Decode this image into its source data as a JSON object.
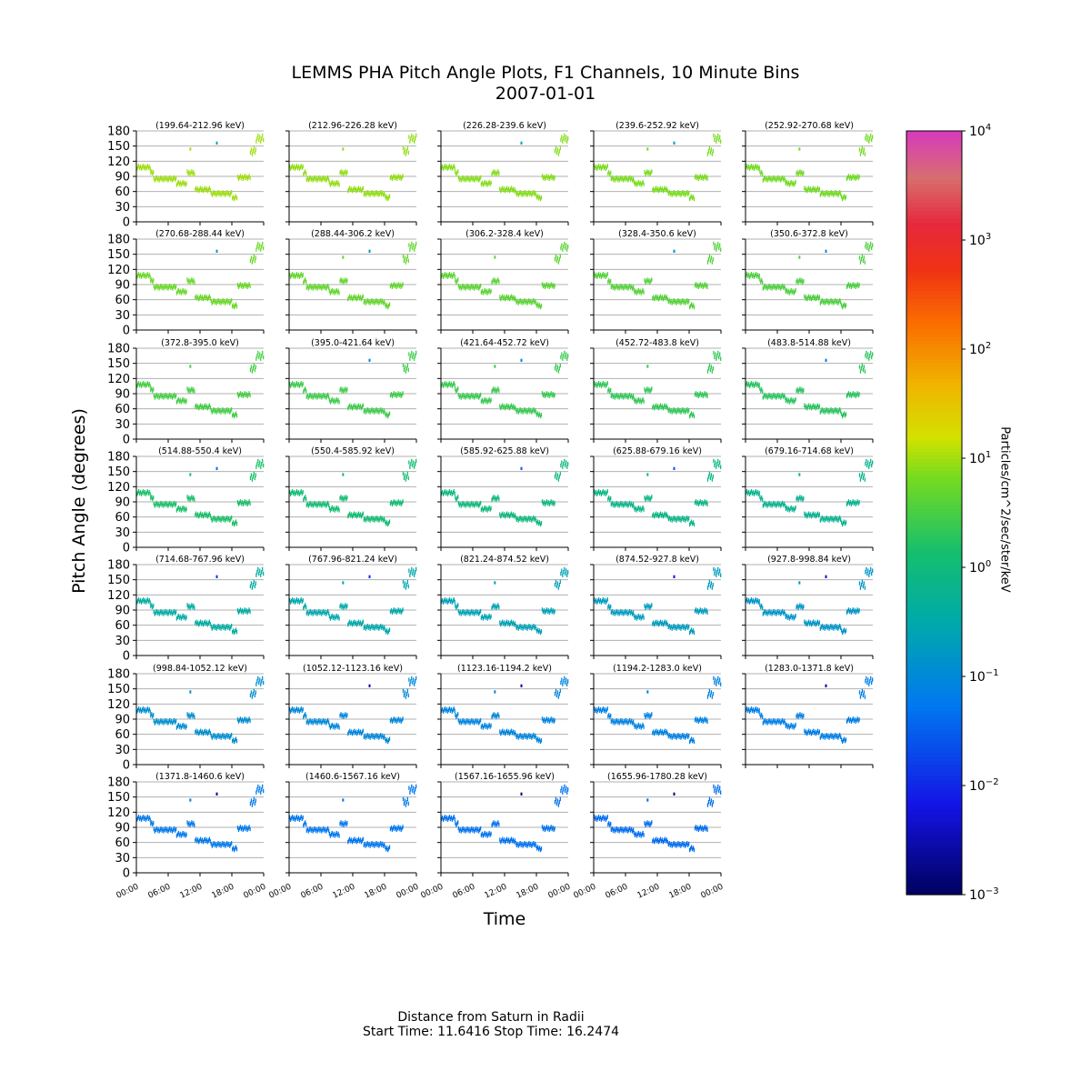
{
  "title": "LEMMS PHA Pitch Angle Plots, F1 Channels,  10 Minute Bins",
  "date": "2007-01-01",
  "footer": {
    "line1": "Distance from Saturn in Radii",
    "line2": "Start Time: 11.6416 Stop Time: 16.2474"
  },
  "colorbar": {
    "label": "Particles/cm^2/sec/ster/keV",
    "scale": "log",
    "range": [
      0.001,
      10000
    ],
    "tick_bases": [
      "10",
      "10",
      "10",
      "10",
      "10",
      "10",
      "10",
      "10"
    ],
    "tick_exponents": [
      "4",
      "3",
      "2",
      "1",
      "0",
      "−1",
      "−2",
      "−3"
    ]
  },
  "chart_data": {
    "type": "heatmap",
    "xlabel": "Time",
    "ylabel": "Pitch Angle (degrees)",
    "ylim": [
      0,
      180
    ],
    "yticks": [
      "180",
      "150",
      "120",
      "90",
      "60",
      "30",
      "0"
    ],
    "xlim_hours": [
      0,
      24
    ],
    "xticks": [
      "00:00",
      "06:00",
      "12:00",
      "18:00",
      "00:00"
    ],
    "grid": true,
    "bin_minutes": 10,
    "pitch_angle_track": [
      {
        "start": 0.0,
        "end": 2.6,
        "pa": 108
      },
      {
        "start": 2.6,
        "end": 3.2,
        "pa": 97
      },
      {
        "start": 3.2,
        "end": 7.5,
        "pa": 85
      },
      {
        "start": 7.5,
        "end": 9.5,
        "pa": 76
      },
      {
        "start": 9.5,
        "end": 11.0,
        "pa": 97
      },
      {
        "start": 11.0,
        "end": 14.0,
        "pa": 64
      },
      {
        "start": 14.0,
        "end": 18.0,
        "pa": 56
      },
      {
        "start": 18.0,
        "end": 19.0,
        "pa": 48
      },
      {
        "start": 19.0,
        "end": 21.4,
        "pa": 88
      },
      {
        "start": 21.4,
        "end": 22.5,
        "pa": 140
      },
      {
        "start": 22.5,
        "end": 24.0,
        "pa": 165
      }
    ],
    "isolated_bins": [
      {
        "t": 10.0,
        "pa": 144
      },
      {
        "t": 15.0,
        "pa": 156
      }
    ],
    "panels": [
      {
        "label": "(199.64-212.96 keV)",
        "log_flux": 1.0
      },
      {
        "label": "(212.96-226.28 keV)",
        "log_flux": 0.95
      },
      {
        "label": "(226.28-239.6 keV)",
        "log_flux": 0.9
      },
      {
        "label": "(239.6-252.92 keV)",
        "log_flux": 0.85
      },
      {
        "label": "(252.92-270.68 keV)",
        "log_flux": 0.8
      },
      {
        "label": "(270.68-288.44 keV)",
        "log_flux": 0.75
      },
      {
        "label": "(288.44-306.2 keV)",
        "log_flux": 0.7
      },
      {
        "label": "(306.2-328.4 keV)",
        "log_flux": 0.65
      },
      {
        "label": "(328.4-350.6 keV)",
        "log_flux": 0.6
      },
      {
        "label": "(350.6-372.8 keV)",
        "log_flux": 0.55
      },
      {
        "label": "(372.8-395.0 keV)",
        "log_flux": 0.5
      },
      {
        "label": "(395.0-421.64 keV)",
        "log_flux": 0.45
      },
      {
        "label": "(421.64-452.72 keV)",
        "log_flux": 0.4
      },
      {
        "label": "(452.72-483.8 keV)",
        "log_flux": 0.35
      },
      {
        "label": "(483.8-514.88 keV)",
        "log_flux": 0.3
      },
      {
        "label": "(514.88-550.4 keV)",
        "log_flux": 0.2
      },
      {
        "label": "(550.4-585.92 keV)",
        "log_flux": 0.1
      },
      {
        "label": "(585.92-625.88 keV)",
        "log_flux": 0.0
      },
      {
        "label": "(625.88-679.16 keV)",
        "log_flux": -0.1
      },
      {
        "label": "(679.16-714.68 keV)",
        "log_flux": -0.2
      },
      {
        "label": "(714.68-767.96 keV)",
        "log_flux": -0.4
      },
      {
        "label": "(767.96-821.24 keV)",
        "log_flux": -0.5
      },
      {
        "label": "(821.24-874.52 keV)",
        "log_flux": -0.6
      },
      {
        "label": "(874.52-927.8 keV)",
        "log_flux": -0.7
      },
      {
        "label": "(927.8-998.84 keV)",
        "log_flux": -0.8
      },
      {
        "label": "(998.84-1052.12 keV)",
        "log_flux": -0.9
      },
      {
        "label": "(1052.12-1123.16 keV)",
        "log_flux": -1.0
      },
      {
        "label": "(1123.16-1194.2 keV)",
        "log_flux": -1.05
      },
      {
        "label": "(1194.2-1283.0 keV)",
        "log_flux": -1.1
      },
      {
        "label": "(1283.0-1371.8 keV)",
        "log_flux": -1.15
      },
      {
        "label": "(1371.8-1460.6 keV)",
        "log_flux": -1.2
      },
      {
        "label": "(1460.6-1567.16 keV)",
        "log_flux": -1.25
      },
      {
        "label": "(1567.16-1655.96 keV)",
        "log_flux": -1.3
      },
      {
        "label": "(1655.96-1780.28 keV)",
        "log_flux": -1.35
      }
    ]
  }
}
